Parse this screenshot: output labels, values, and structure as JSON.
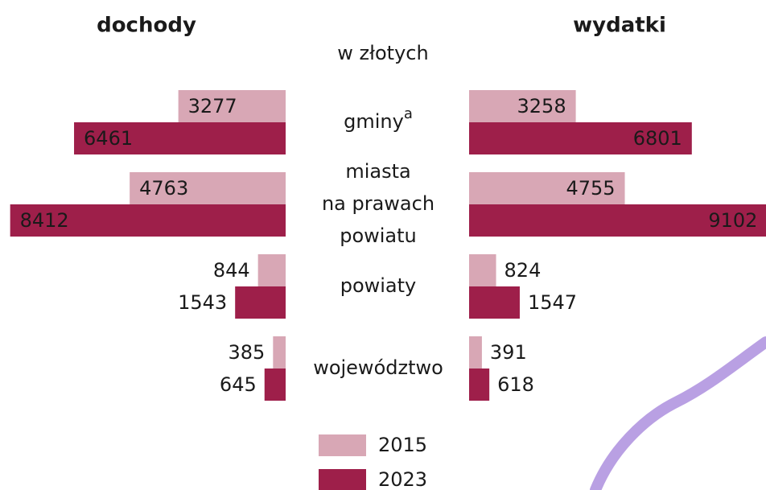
{
  "chart_data": {
    "type": "butterfly-bar",
    "subtitle": "w złotych",
    "categories": [
      [
        "gminy"
      ],
      [
        "miasta",
        "na prawach",
        "powiatu"
      ],
      [
        "powiaty"
      ],
      [
        "województwo"
      ]
    ],
    "category_superscripts": [
      "a",
      null,
      null,
      null
    ],
    "series": [
      {
        "name": "2015",
        "color": "#d8a7b5"
      },
      {
        "name": "2023",
        "color": "#9e1f4a"
      }
    ],
    "panels": [
      {
        "title": "dochody",
        "direction": "left",
        "values": [
          [
            3277,
            4763,
            844,
            385
          ],
          [
            6461,
            8412,
            1543,
            645
          ]
        ]
      },
      {
        "title": "wydatki",
        "direction": "right",
        "values": [
          [
            3258,
            4755,
            824,
            391
          ],
          [
            6801,
            9102,
            1547,
            618
          ]
        ]
      }
    ]
  }
}
